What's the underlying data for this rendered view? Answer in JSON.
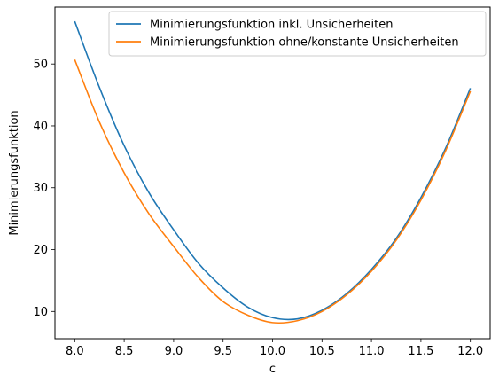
{
  "chart_data": {
    "type": "line",
    "title": "",
    "xlabel": "c",
    "ylabel": "Minimierungsfunktion",
    "xlim": [
      7.8,
      12.2
    ],
    "ylim": [
      5.6,
      59.2
    ],
    "xticks": [
      8.0,
      8.5,
      9.0,
      9.5,
      10.0,
      10.5,
      11.0,
      11.5,
      12.0
    ],
    "xtick_labels": [
      "8.0",
      "8.5",
      "9.0",
      "9.5",
      "10.0",
      "10.5",
      "11.0",
      "11.5",
      "12.0"
    ],
    "yticks": [
      10,
      20,
      30,
      40,
      50
    ],
    "ytick_labels": [
      "10",
      "20",
      "30",
      "40",
      "50"
    ],
    "grid": false,
    "legend_position": "top-right",
    "series": [
      {
        "name": "Minimierungsfunktion inkl. Unsicherheiten",
        "color": "#1f77b4",
        "x": [
          8.0,
          8.25,
          8.5,
          8.75,
          9.0,
          9.25,
          9.5,
          9.75,
          10.0,
          10.25,
          10.5,
          10.75,
          11.0,
          11.25,
          11.5,
          11.75,
          12.0
        ],
        "y": [
          56.9,
          46.2,
          36.8,
          29.2,
          23.2,
          17.8,
          13.8,
          10.7,
          9.0,
          8.8,
          10.2,
          12.9,
          16.8,
          21.8,
          28.4,
          36.4,
          46.1
        ]
      },
      {
        "name": "Minimierungsfunktion ohne/konstante Unsicherheiten",
        "color": "#ff7f0e",
        "x": [
          8.0,
          8.25,
          8.5,
          8.75,
          9.0,
          9.25,
          9.5,
          9.75,
          10.0,
          10.25,
          10.5,
          10.75,
          11.0,
          11.25,
          11.5,
          11.75,
          12.0
        ],
        "y": [
          50.7,
          40.6,
          32.4,
          25.8,
          20.5,
          15.5,
          11.6,
          9.4,
          8.2,
          8.5,
          10.0,
          12.7,
          16.5,
          21.5,
          28.0,
          36.0,
          45.6
        ]
      }
    ]
  }
}
